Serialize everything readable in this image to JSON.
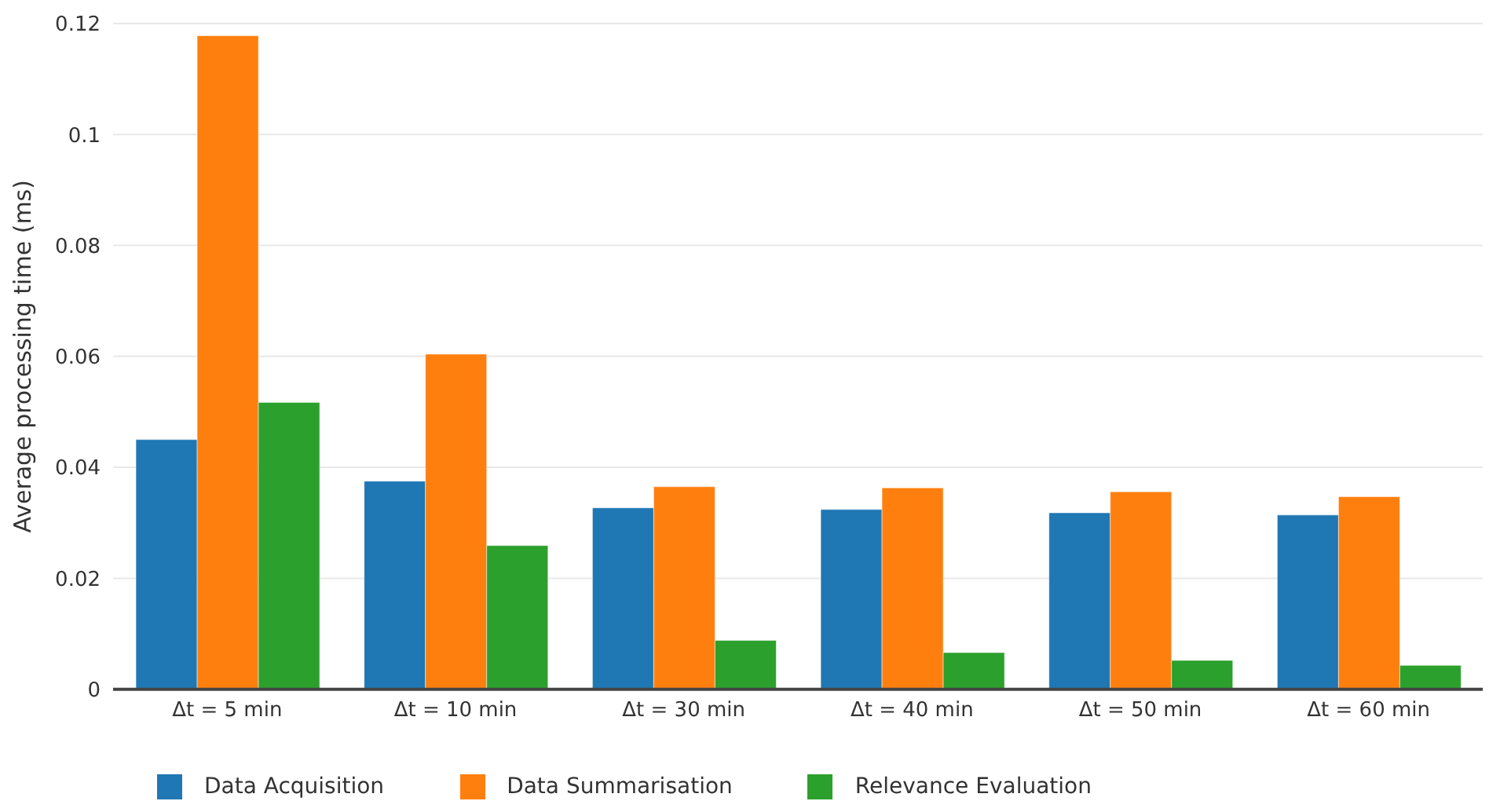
{
  "chart_data": {
    "type": "bar",
    "ylabel": "Average processing time (ms)",
    "categories": [
      "Δt = 5 min",
      "Δt = 10 min",
      "Δt = 30 min",
      "Δt = 40 min",
      "Δt =  50 min",
      "Δt = 60 min"
    ],
    "series": [
      {
        "name": "Data Acquisition",
        "color": "#1f77b4",
        "values": [
          0.045,
          0.0375,
          0.0327,
          0.0324,
          0.0318,
          0.0314
        ]
      },
      {
        "name": "Data Summarisation",
        "color": "#ff7f0e",
        "values": [
          0.1178,
          0.0604,
          0.0365,
          0.0363,
          0.0356,
          0.0347
        ]
      },
      {
        "name": "Relevance Evaluation",
        "color": "#2ca02c",
        "values": [
          0.0517,
          0.0259,
          0.0088,
          0.0066,
          0.0052,
          0.0043
        ]
      }
    ],
    "ylim": [
      0,
      0.12
    ],
    "yticks": [
      0,
      0.02,
      0.04,
      0.06,
      0.08,
      0.1,
      0.12
    ],
    "grid": "y",
    "legend": "bottom left"
  }
}
